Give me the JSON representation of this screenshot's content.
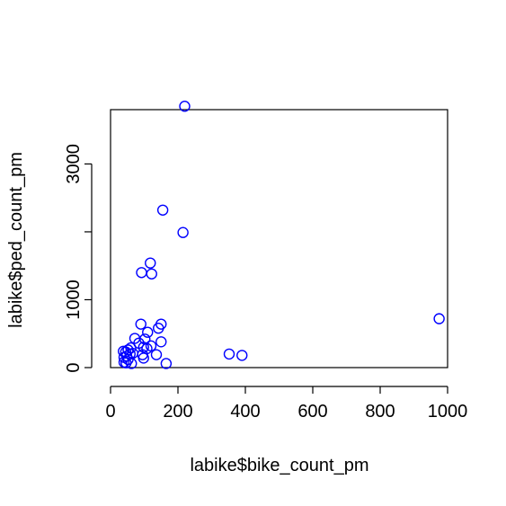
{
  "chart_data": {
    "type": "scatter",
    "title": "",
    "xlabel": "labike$bike_count_pm",
    "ylabel": "labike$ped_count_pm",
    "xlim": [
      0,
      1000
    ],
    "ylim": [
      0,
      3800
    ],
    "x_ticks": [
      0,
      200,
      400,
      600,
      800,
      1000
    ],
    "y_ticks": [
      0,
      1000,
      3000
    ],
    "grid": false,
    "legend": "none",
    "point_color": "#0000ff",
    "series": [
      {
        "points": [
          [
            220,
            3850
          ],
          [
            155,
            2320
          ],
          [
            215,
            1990
          ],
          [
            118,
            1540
          ],
          [
            92,
            1400
          ],
          [
            122,
            1380
          ],
          [
            975,
            720
          ],
          [
            150,
            640
          ],
          [
            90,
            640
          ],
          [
            142,
            580
          ],
          [
            110,
            520
          ],
          [
            72,
            430
          ],
          [
            102,
            420
          ],
          [
            150,
            380
          ],
          [
            84,
            360
          ],
          [
            120,
            320
          ],
          [
            98,
            300
          ],
          [
            108,
            280
          ],
          [
            60,
            290
          ],
          [
            52,
            260
          ],
          [
            38,
            240
          ],
          [
            45,
            230
          ],
          [
            66,
            210
          ],
          [
            58,
            200
          ],
          [
            95,
            190
          ],
          [
            48,
            170
          ],
          [
            40,
            150
          ],
          [
            136,
            190
          ],
          [
            352,
            200
          ],
          [
            390,
            180
          ],
          [
            98,
            140
          ],
          [
            52,
            120
          ],
          [
            40,
            80
          ],
          [
            62,
            60
          ],
          [
            165,
            60
          ],
          [
            46,
            70
          ]
        ]
      }
    ]
  }
}
